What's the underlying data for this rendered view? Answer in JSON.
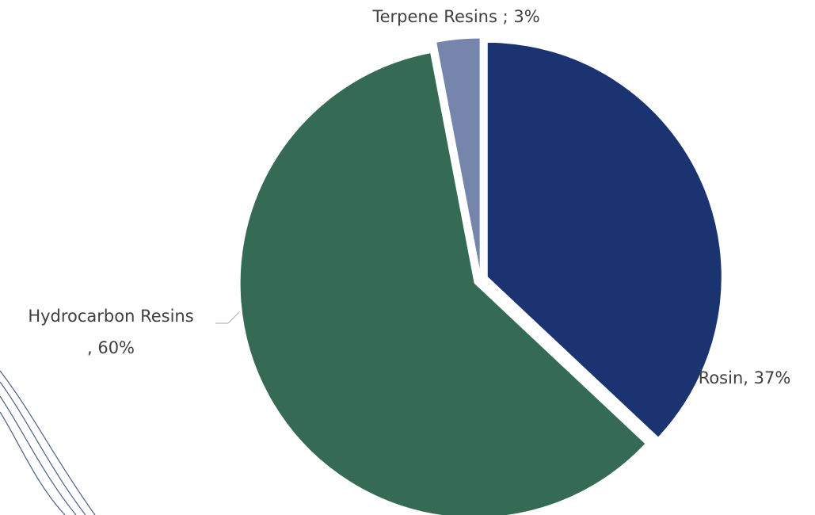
{
  "chart_data": {
    "type": "pie",
    "categories": [
      "Rosin",
      "Hydrocarbon Resins",
      "Terpene Resins"
    ],
    "values": [
      37,
      60,
      3
    ],
    "value_labels": [
      "Rosin, 37%",
      "Hydrocarbon Resins , 60%",
      "Terpene Resins ; 3%"
    ],
    "colors": [
      "#1b3370",
      "#356a55",
      "#7585ac"
    ]
  }
}
